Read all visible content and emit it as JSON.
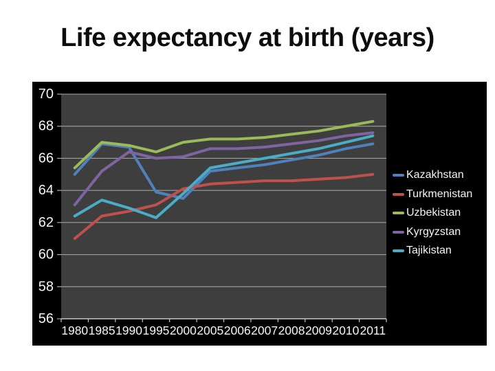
{
  "title": "Life expectancy at birth (years)",
  "colors": {
    "slide_bg": "#FFFFFF",
    "chart_bg": "#000000",
    "plot_bg": "#3E3E3E",
    "gridline": "#ADADAD",
    "axis_line": "#C8C8C8",
    "tick_text": "#F5F5F5",
    "title_text": "#0D0D0D",
    "kazakhstan": "#4F81BD",
    "turkmenistan": "#C0504D",
    "uzbekistan": "#9BBB59",
    "kyrgyzstan": "#8064A2",
    "tajikistan": "#4BACC6"
  },
  "chart_data": {
    "type": "line",
    "title": "Life expectancy at birth (years)",
    "xlabel": "",
    "ylabel": "",
    "categories": [
      "1980",
      "1985",
      "1990",
      "1995",
      "2000",
      "2005",
      "2006",
      "2007",
      "2008",
      "2009",
      "2010",
      "2011"
    ],
    "series": [
      {
        "name": "Kazakhstan",
        "color": "#4F81BD",
        "values": [
          65.0,
          66.9,
          66.7,
          63.9,
          63.5,
          65.2,
          65.4,
          65.6,
          65.9,
          66.2,
          66.6,
          66.9
        ]
      },
      {
        "name": "Turkmenistan",
        "color": "#C0504D",
        "values": [
          61.0,
          62.4,
          62.7,
          63.1,
          64.1,
          64.4,
          64.5,
          64.6,
          64.6,
          64.7,
          64.8,
          65.0
        ]
      },
      {
        "name": "Uzbekistan",
        "color": "#9BBB59",
        "values": [
          65.4,
          67.0,
          66.8,
          66.4,
          67.0,
          67.2,
          67.2,
          67.3,
          67.5,
          67.7,
          68.0,
          68.3
        ]
      },
      {
        "name": "Kyrgyzstan",
        "color": "#8064A2",
        "values": [
          63.1,
          65.2,
          66.4,
          66.0,
          66.1,
          66.6,
          66.6,
          66.7,
          66.9,
          67.1,
          67.4,
          67.6
        ]
      },
      {
        "name": "Tajikistan",
        "color": "#4BACC6",
        "values": [
          62.4,
          63.4,
          62.9,
          62.3,
          63.8,
          65.4,
          65.7,
          66.0,
          66.3,
          66.6,
          67.0,
          67.4
        ]
      }
    ],
    "ylim": [
      56,
      70
    ],
    "yticks": [
      56,
      58,
      60,
      62,
      64,
      66,
      68,
      70
    ],
    "grid": true,
    "legend_position": "right"
  }
}
